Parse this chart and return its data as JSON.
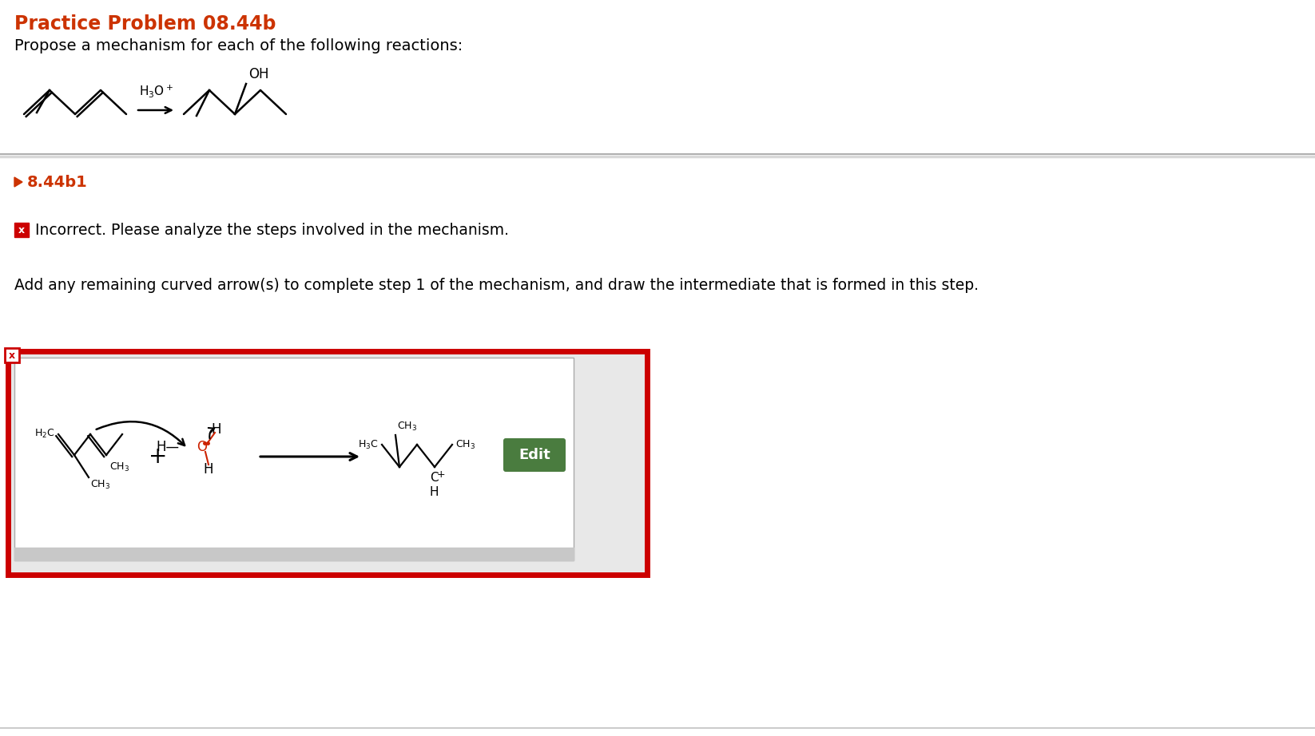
{
  "title": "Practice Problem 08.44b",
  "title_color": "#cc3300",
  "subtitle": "Propose a mechanism for each of the following reactions:",
  "section_label": "8.44b1",
  "section_label_color": "#cc3300",
  "incorrect_text": "Incorrect. Please analyze the steps involved in the mechanism.",
  "instruction_text": "Add any remaining curved arrow(s) to complete step 1 of the mechanism, and draw the intermediate that is formed in this step.",
  "edit_button_color": "#4a7c3f",
  "edit_button_text": "Edit",
  "bg_color": "#ffffff",
  "red_border_color": "#cc0000",
  "separator_color": "#cccccc"
}
